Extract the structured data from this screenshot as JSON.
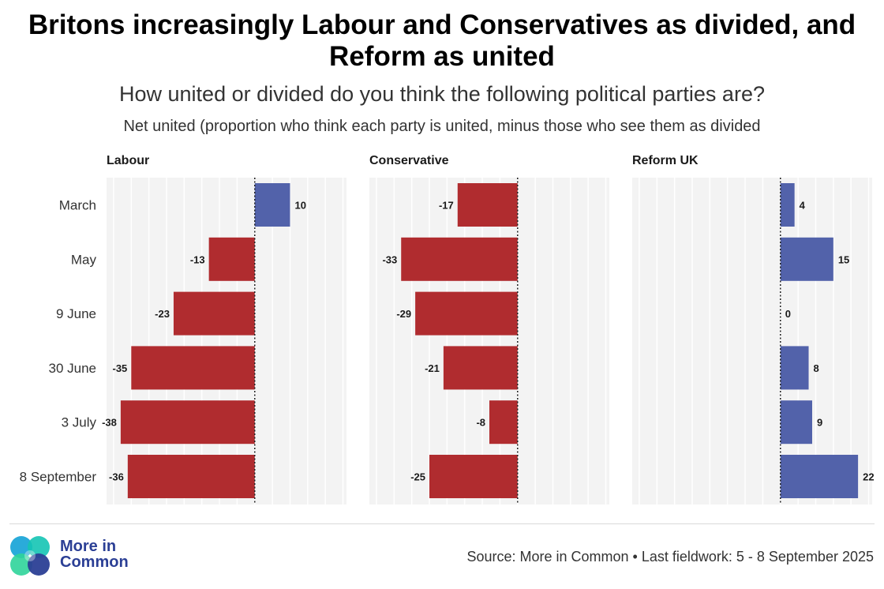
{
  "header": {
    "title": "Britons increasingly Labour and Conservatives as divided, and Reform as united",
    "subtitle": "How united or divided do you think the following political parties are?",
    "subsubtitle": "Net united (proportion who think each party is united, minus those who see them as divided"
  },
  "chart_data": {
    "type": "bar",
    "orientation": "horizontal",
    "categories": [
      "March",
      "May",
      "9 June",
      "30 June",
      "3 July",
      "8 September"
    ],
    "xlim": [
      -42,
      26
    ],
    "series": [
      {
        "name": "Labour",
        "values": [
          10,
          -13,
          -23,
          -35,
          -38,
          -36
        ]
      },
      {
        "name": "Conservative",
        "values": [
          -17,
          -33,
          -29,
          -21,
          -8,
          -25
        ]
      },
      {
        "name": "Reform UK",
        "values": [
          4,
          15,
          0,
          8,
          9,
          22
        ]
      }
    ],
    "colors": {
      "positive": "#5262aa",
      "negative": "#b02c2f"
    },
    "zero_line": "dotted",
    "grid": true
  },
  "footer": {
    "brand_line1": "More in",
    "brand_line2": "Common",
    "source": "Source: More in Common • Last fieldwork: 5 - 8 September 2025"
  },
  "logo": {
    "icon": "four-circles-logo",
    "colors": [
      "#1fa7d8",
      "#14c4b4",
      "#2b3f95",
      "#2fd49a"
    ]
  }
}
